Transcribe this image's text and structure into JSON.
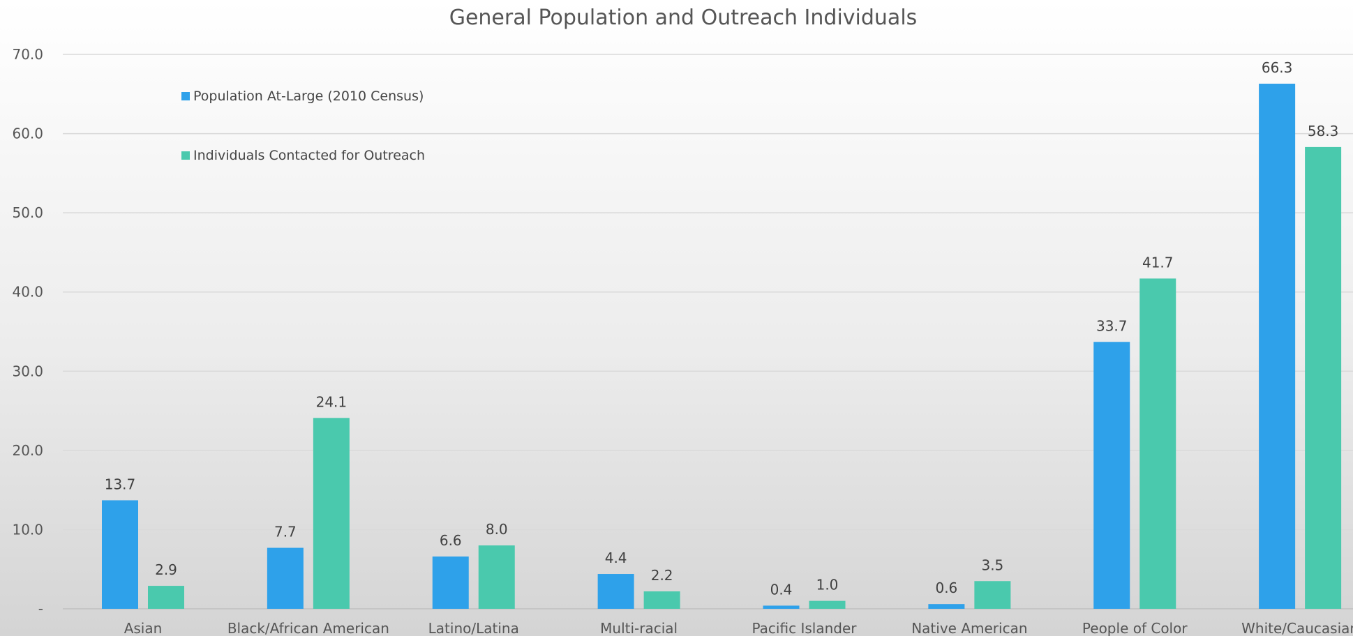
{
  "chart_data": {
    "type": "bar",
    "title": "General Population and Outreach  Individuals",
    "categories": [
      "Asian",
      "Black/African American",
      "Latino/Latina",
      "Multi-racial",
      "Pacific Islander",
      "Native American",
      "People of Color",
      "White/Caucasian"
    ],
    "series": [
      {
        "name": "Population At-Large (2010 Census)",
        "color": "#2ea1ea",
        "values": [
          13.7,
          7.7,
          6.6,
          4.4,
          0.4,
          0.6,
          33.7,
          66.3
        ],
        "labels": [
          "13.7",
          "7.7",
          "6.6",
          "4.4",
          "0.4",
          "0.6",
          "33.7",
          "66.3"
        ]
      },
      {
        "name": "Individuals Contacted for Outreach",
        "color": "#4ac9ad",
        "values": [
          2.9,
          24.1,
          8.0,
          2.2,
          1.0,
          3.5,
          41.7,
          58.3
        ],
        "labels": [
          "2.9",
          "24.1",
          "8.0",
          "2.2",
          "1.0",
          "3.5",
          "41.7",
          "58.3"
        ]
      }
    ],
    "ylim": [
      0,
      70
    ],
    "yticks": [
      0,
      10,
      20,
      30,
      40,
      50,
      60,
      70
    ],
    "ytick_labels": [
      "-",
      "10.0",
      "20.0",
      "30.0",
      "40.0",
      "50.0",
      "60.0",
      "70.0"
    ],
    "grid": true,
    "legend_position": "top-left"
  }
}
